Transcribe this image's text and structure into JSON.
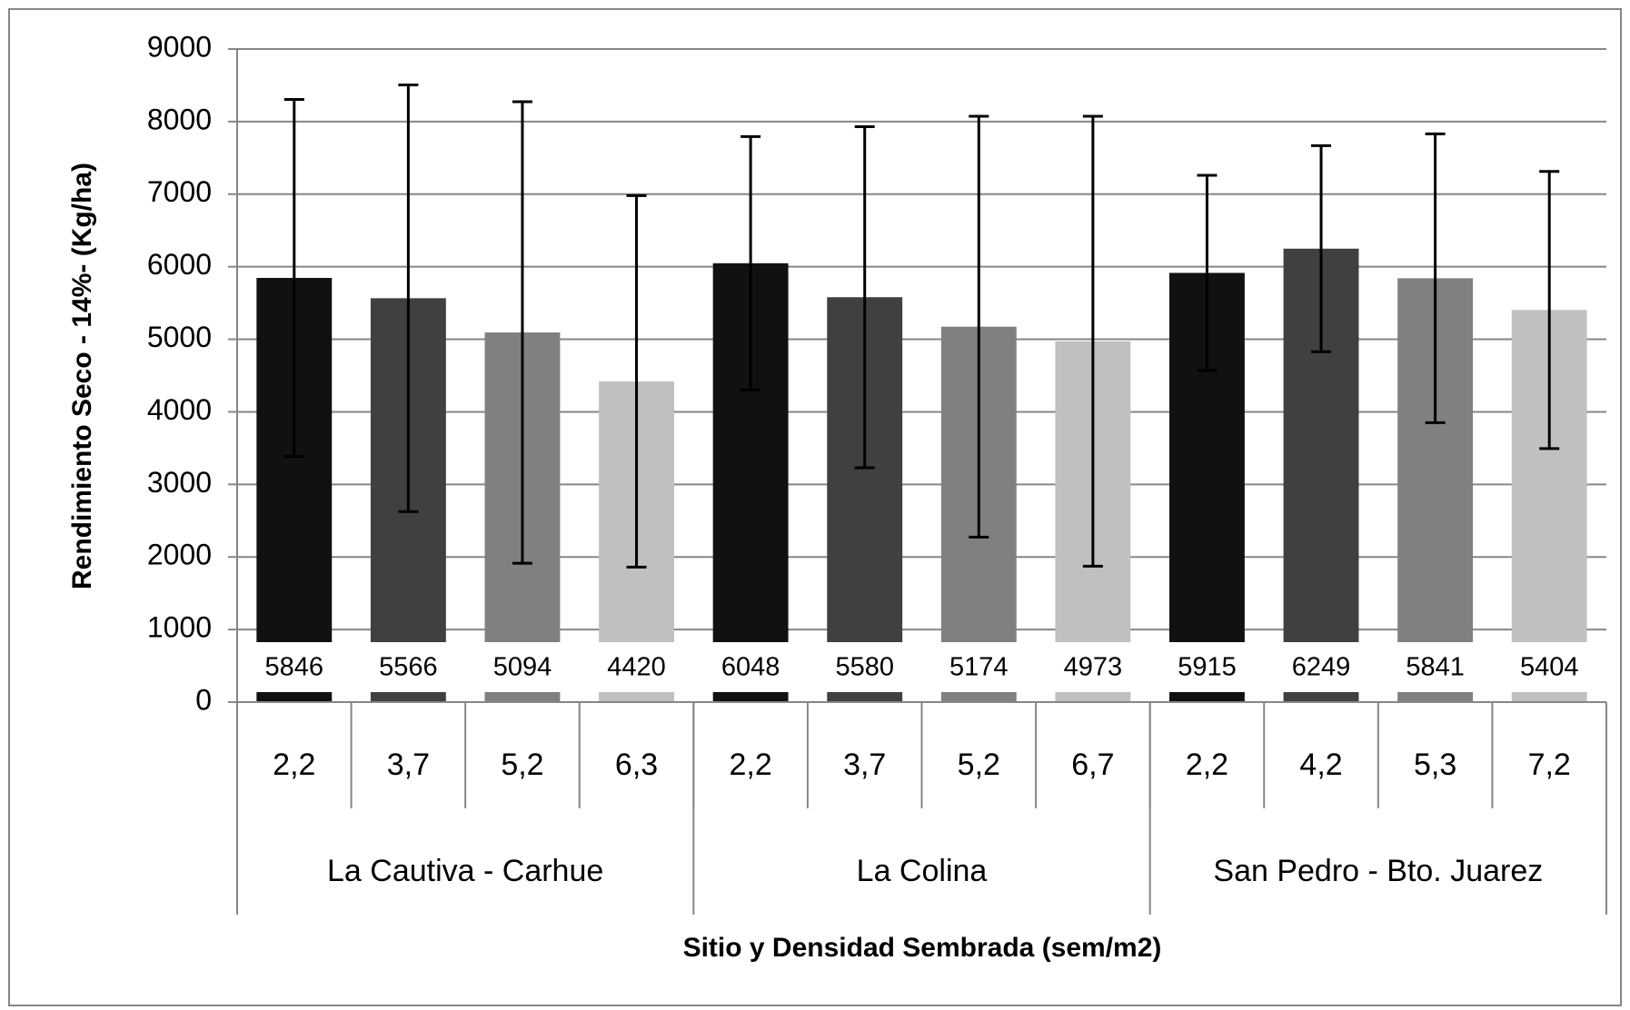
{
  "chart_data": {
    "type": "bar",
    "x_label": "Sitio y Densidad  Sembrada (sem/m2)",
    "y_label": "Rendimiento Seco - 14%- (Kg/ha)",
    "colors": [
      "#111111",
      "#404040",
      "#808080",
      "#c0c0c0"
    ],
    "groups": [
      {
        "name": "La Cautiva  -  Carhue",
        "categories": [
          "2,2",
          "3,7",
          "5,2",
          "6,3"
        ],
        "values": [
          5846,
          5566,
          5094,
          4420
        ],
        "errors": [
          2460,
          2940,
          3180,
          2560
        ]
      },
      {
        "name": "La Colina",
        "categories": [
          "2,2",
          "3,7",
          "5,2",
          "6,7"
        ],
        "values": [
          6048,
          5580,
          5174,
          4973
        ],
        "errors": [
          1745,
          2350,
          2900,
          3100
        ]
      },
      {
        "name": "San Pedro - Bto. Juarez",
        "categories": [
          "2,2",
          "4,2",
          "5,3",
          "7,2"
        ],
        "values": [
          5915,
          6249,
          5841,
          5404
        ],
        "errors": [
          1345,
          1420,
          1990,
          1910
        ]
      }
    ],
    "ylim": [
      0,
      9000
    ],
    "yticks": [
      0,
      1000,
      2000,
      3000,
      4000,
      5000,
      6000,
      7000,
      8000,
      9000
    ],
    "grid": true
  }
}
